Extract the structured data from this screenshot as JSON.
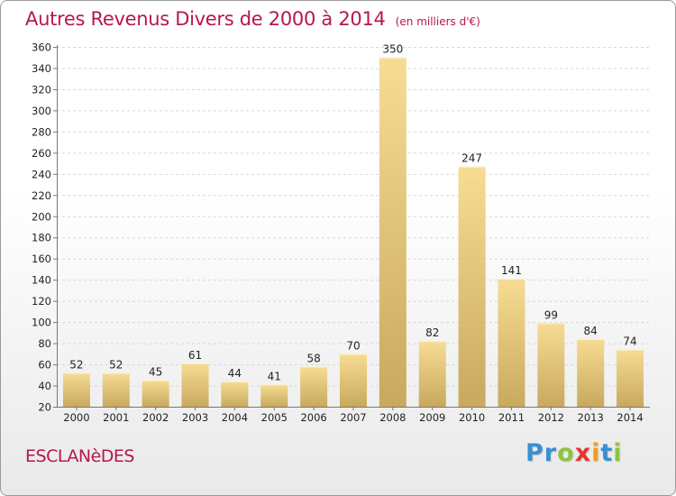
{
  "header": {
    "title": "Autres Revenus Divers de 2000 à 2014",
    "subtitle": "(en milliers d'€)"
  },
  "footer": {
    "commune": "ESCLANèDES",
    "logo_letters": [
      {
        "char": "P",
        "color": "#3a8fd0"
      },
      {
        "char": "r",
        "color": "#3a8fd0"
      },
      {
        "char": "o",
        "color": "#8cc63f"
      },
      {
        "char": "x",
        "color": "#e8342b"
      },
      {
        "char": "i",
        "color": "#f39c1e"
      },
      {
        "char": "t",
        "color": "#3a8fd0"
      },
      {
        "char": "i",
        "color": "#8cc63f"
      }
    ]
  },
  "chart_data": {
    "type": "bar",
    "title": "Autres Revenus Divers de 2000 à 2014",
    "subtitle": "(en milliers d'€)",
    "categories": [
      "2000",
      "2001",
      "2002",
      "2003",
      "2004",
      "2005",
      "2006",
      "2007",
      "2008",
      "2009",
      "2010",
      "2011",
      "2012",
      "2013",
      "2014"
    ],
    "values": [
      52,
      52,
      45,
      61,
      44,
      41,
      58,
      70,
      350,
      82,
      247,
      141,
      99,
      84,
      74
    ],
    "ylim": [
      20,
      360
    ],
    "yticks": [
      20,
      40,
      60,
      80,
      100,
      120,
      140,
      160,
      180,
      200,
      220,
      240,
      260,
      280,
      300,
      320,
      340,
      360
    ],
    "grid": true,
    "bar_color_light": "#f7dc93",
    "bar_color_dark": "#c8a95e"
  }
}
